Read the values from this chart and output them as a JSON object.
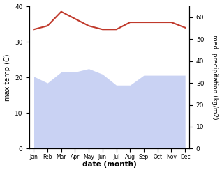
{
  "months": [
    "Jan",
    "Feb",
    "Mar",
    "Apr",
    "May",
    "Jun",
    "Jul",
    "Aug",
    "Sep",
    "Oct",
    "Nov",
    "Dec"
  ],
  "month_indices": [
    0,
    1,
    2,
    3,
    4,
    5,
    6,
    7,
    8,
    9,
    10,
    11
  ],
  "max_temp": [
    33.5,
    34.5,
    38.5,
    36.5,
    34.5,
    33.5,
    33.5,
    35.5,
    35.5,
    35.5,
    35.5,
    34.0
  ],
  "precipitation": [
    33.0,
    30.0,
    35.0,
    35.0,
    36.5,
    34.0,
    29.0,
    29.0,
    33.5,
    33.5,
    33.5,
    33.5
  ],
  "temp_color": "#c0392b",
  "precip_fill_color": "#b8c4f0",
  "precip_fill_alpha": 0.75,
  "temp_ylim": [
    0,
    40
  ],
  "precip_ylim": [
    0,
    65
  ],
  "temp_scale_factor": 0.615,
  "xlabel": "date (month)",
  "ylabel_left": "max temp (C)",
  "ylabel_right": "med. precipitation (kg/m2)",
  "background_color": "#ffffff",
  "temp_linewidth": 1.5,
  "figsize": [
    3.18,
    2.47
  ],
  "dpi": 100
}
